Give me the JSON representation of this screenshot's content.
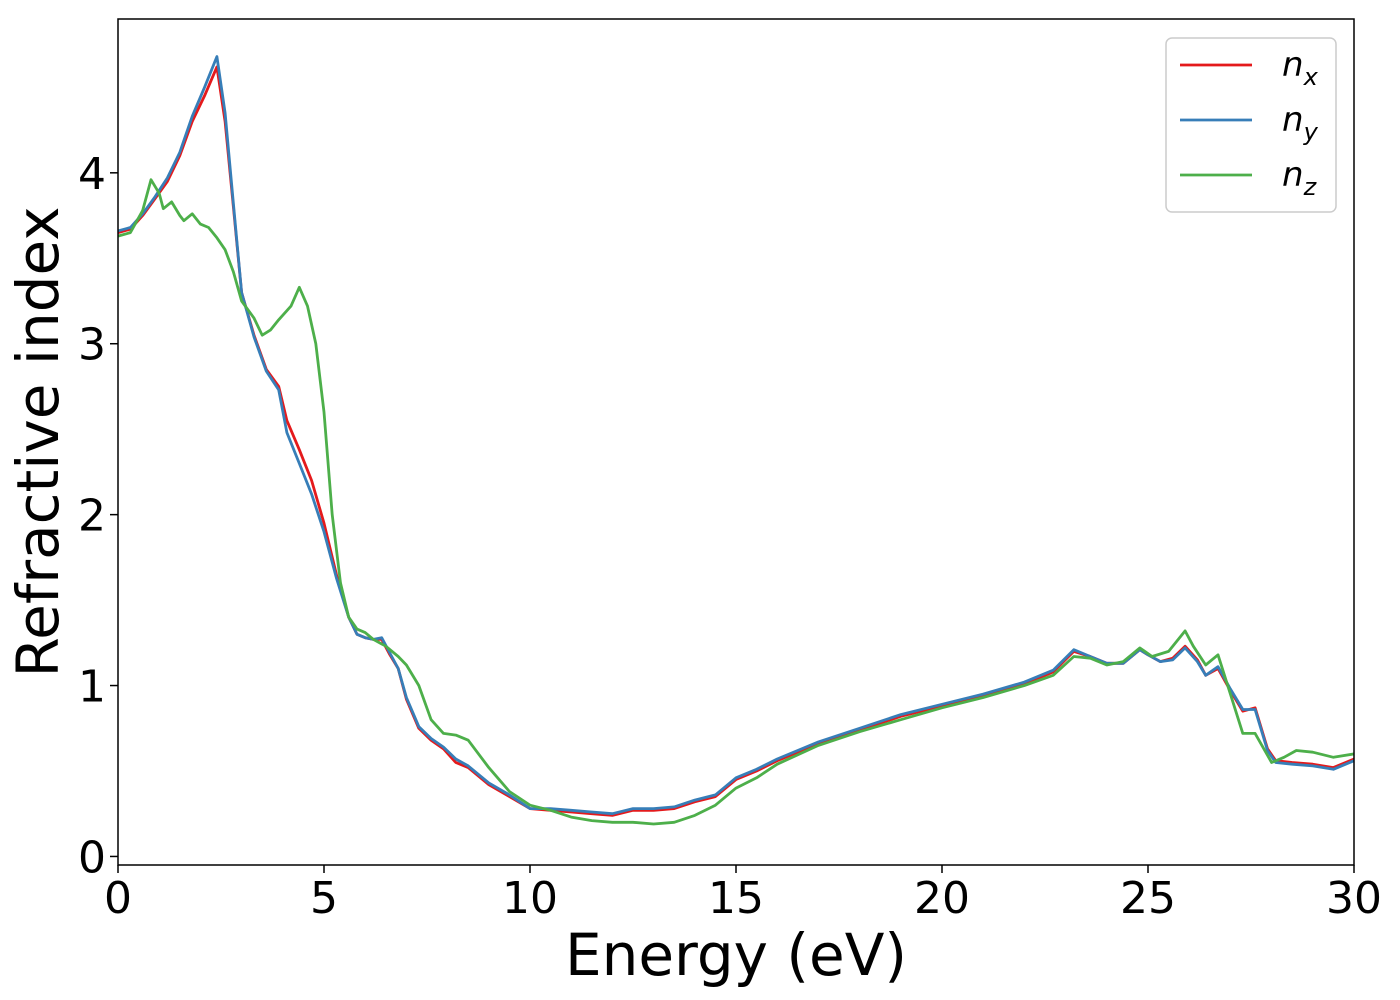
{
  "chart_data": {
    "type": "line",
    "title": "",
    "xlabel": "Energy (eV)",
    "ylabel": "Refractive index",
    "xlim": [
      0,
      30
    ],
    "ylim": [
      -0.05,
      4.9
    ],
    "xticks": [
      0,
      5,
      10,
      15,
      20,
      25,
      30
    ],
    "yticks": [
      0,
      1,
      2,
      3,
      4
    ],
    "grid": false,
    "legend_position": "top-right",
    "series": [
      {
        "name": "n_x",
        "legend_base": "n",
        "legend_sub": "x",
        "color": "#e41a1c",
        "points": [
          [
            0,
            3.65
          ],
          [
            0.3,
            3.67
          ],
          [
            0.6,
            3.75
          ],
          [
            0.9,
            3.85
          ],
          [
            1.2,
            3.95
          ],
          [
            1.5,
            4.1
          ],
          [
            1.8,
            4.3
          ],
          [
            2.1,
            4.45
          ],
          [
            2.4,
            4.62
          ],
          [
            2.6,
            4.3
          ],
          [
            2.8,
            3.8
          ],
          [
            3.0,
            3.3
          ],
          [
            3.3,
            3.05
          ],
          [
            3.6,
            2.85
          ],
          [
            3.9,
            2.75
          ],
          [
            4.1,
            2.55
          ],
          [
            4.4,
            2.38
          ],
          [
            4.7,
            2.2
          ],
          [
            5.0,
            1.95
          ],
          [
            5.3,
            1.65
          ],
          [
            5.6,
            1.4
          ],
          [
            5.8,
            1.3
          ],
          [
            6.0,
            1.28
          ],
          [
            6.2,
            1.27
          ],
          [
            6.4,
            1.27
          ],
          [
            6.6,
            1.18
          ],
          [
            6.8,
            1.1
          ],
          [
            7.0,
            0.92
          ],
          [
            7.3,
            0.75
          ],
          [
            7.6,
            0.68
          ],
          [
            7.9,
            0.63
          ],
          [
            8.2,
            0.55
          ],
          [
            8.5,
            0.52
          ],
          [
            9.0,
            0.42
          ],
          [
            9.5,
            0.35
          ],
          [
            10.0,
            0.28
          ],
          [
            10.5,
            0.27
          ],
          [
            11.0,
            0.26
          ],
          [
            11.5,
            0.25
          ],
          [
            12.0,
            0.24
          ],
          [
            12.5,
            0.27
          ],
          [
            13.0,
            0.27
          ],
          [
            13.5,
            0.28
          ],
          [
            14.0,
            0.32
          ],
          [
            14.5,
            0.35
          ],
          [
            15.0,
            0.45
          ],
          [
            15.5,
            0.5
          ],
          [
            16.0,
            0.56
          ],
          [
            17.0,
            0.66
          ],
          [
            18.0,
            0.74
          ],
          [
            19.0,
            0.82
          ],
          [
            20.0,
            0.88
          ],
          [
            21.0,
            0.94
          ],
          [
            22.0,
            1.01
          ],
          [
            22.7,
            1.08
          ],
          [
            23.2,
            1.2
          ],
          [
            23.6,
            1.17
          ],
          [
            24.0,
            1.13
          ],
          [
            24.4,
            1.13
          ],
          [
            24.8,
            1.21
          ],
          [
            25.0,
            1.18
          ],
          [
            25.3,
            1.14
          ],
          [
            25.6,
            1.16
          ],
          [
            25.9,
            1.23
          ],
          [
            26.2,
            1.15
          ],
          [
            26.4,
            1.06
          ],
          [
            26.7,
            1.1
          ],
          [
            27.0,
            0.97
          ],
          [
            27.3,
            0.85
          ],
          [
            27.6,
            0.87
          ],
          [
            27.9,
            0.63
          ],
          [
            28.1,
            0.56
          ],
          [
            28.5,
            0.55
          ],
          [
            29.0,
            0.54
          ],
          [
            29.5,
            0.52
          ],
          [
            30.0,
            0.57
          ]
        ]
      },
      {
        "name": "n_y",
        "legend_base": "n",
        "legend_sub": "y",
        "color": "#377eb8",
        "points": [
          [
            0,
            3.66
          ],
          [
            0.3,
            3.68
          ],
          [
            0.6,
            3.76
          ],
          [
            0.9,
            3.86
          ],
          [
            1.2,
            3.97
          ],
          [
            1.5,
            4.12
          ],
          [
            1.8,
            4.33
          ],
          [
            2.1,
            4.5
          ],
          [
            2.4,
            4.68
          ],
          [
            2.6,
            4.35
          ],
          [
            2.8,
            3.82
          ],
          [
            3.0,
            3.3
          ],
          [
            3.3,
            3.04
          ],
          [
            3.6,
            2.84
          ],
          [
            3.9,
            2.73
          ],
          [
            4.1,
            2.48
          ],
          [
            4.4,
            2.3
          ],
          [
            4.7,
            2.12
          ],
          [
            5.0,
            1.9
          ],
          [
            5.3,
            1.63
          ],
          [
            5.6,
            1.4
          ],
          [
            5.8,
            1.3
          ],
          [
            6.0,
            1.28
          ],
          [
            6.2,
            1.27
          ],
          [
            6.4,
            1.28
          ],
          [
            6.6,
            1.19
          ],
          [
            6.8,
            1.1
          ],
          [
            7.0,
            0.93
          ],
          [
            7.3,
            0.76
          ],
          [
            7.6,
            0.69
          ],
          [
            7.9,
            0.64
          ],
          [
            8.2,
            0.57
          ],
          [
            8.5,
            0.53
          ],
          [
            9.0,
            0.43
          ],
          [
            9.5,
            0.36
          ],
          [
            10.0,
            0.28
          ],
          [
            10.5,
            0.28
          ],
          [
            11.0,
            0.27
          ],
          [
            11.5,
            0.26
          ],
          [
            12.0,
            0.25
          ],
          [
            12.5,
            0.28
          ],
          [
            13.0,
            0.28
          ],
          [
            13.5,
            0.29
          ],
          [
            14.0,
            0.33
          ],
          [
            14.5,
            0.36
          ],
          [
            15.0,
            0.46
          ],
          [
            15.5,
            0.51
          ],
          [
            16.0,
            0.57
          ],
          [
            17.0,
            0.67
          ],
          [
            18.0,
            0.75
          ],
          [
            19.0,
            0.83
          ],
          [
            20.0,
            0.89
          ],
          [
            21.0,
            0.95
          ],
          [
            22.0,
            1.02
          ],
          [
            22.7,
            1.09
          ],
          [
            23.2,
            1.21
          ],
          [
            23.6,
            1.17
          ],
          [
            24.0,
            1.13
          ],
          [
            24.4,
            1.13
          ],
          [
            24.8,
            1.21
          ],
          [
            25.0,
            1.18
          ],
          [
            25.3,
            1.14
          ],
          [
            25.6,
            1.15
          ],
          [
            25.9,
            1.22
          ],
          [
            26.2,
            1.14
          ],
          [
            26.4,
            1.06
          ],
          [
            26.7,
            1.11
          ],
          [
            27.0,
            0.98
          ],
          [
            27.3,
            0.86
          ],
          [
            27.6,
            0.86
          ],
          [
            27.9,
            0.62
          ],
          [
            28.1,
            0.55
          ],
          [
            28.5,
            0.54
          ],
          [
            29.0,
            0.53
          ],
          [
            29.5,
            0.51
          ],
          [
            30.0,
            0.56
          ]
        ]
      },
      {
        "name": "n_z",
        "legend_base": "n",
        "legend_sub": "z",
        "color": "#4daf4a",
        "points": [
          [
            0,
            3.63
          ],
          [
            0.3,
            3.65
          ],
          [
            0.6,
            3.78
          ],
          [
            0.8,
            3.96
          ],
          [
            1.0,
            3.88
          ],
          [
            1.1,
            3.79
          ],
          [
            1.3,
            3.83
          ],
          [
            1.5,
            3.75
          ],
          [
            1.6,
            3.72
          ],
          [
            1.8,
            3.76
          ],
          [
            2.0,
            3.7
          ],
          [
            2.2,
            3.68
          ],
          [
            2.4,
            3.62
          ],
          [
            2.6,
            3.55
          ],
          [
            2.8,
            3.42
          ],
          [
            3.0,
            3.25
          ],
          [
            3.3,
            3.15
          ],
          [
            3.5,
            3.05
          ],
          [
            3.7,
            3.08
          ],
          [
            3.9,
            3.14
          ],
          [
            4.2,
            3.22
          ],
          [
            4.4,
            3.33
          ],
          [
            4.6,
            3.22
          ],
          [
            4.8,
            3.0
          ],
          [
            5.0,
            2.6
          ],
          [
            5.2,
            2.0
          ],
          [
            5.4,
            1.6
          ],
          [
            5.6,
            1.4
          ],
          [
            5.8,
            1.33
          ],
          [
            6.0,
            1.31
          ],
          [
            6.2,
            1.27
          ],
          [
            6.5,
            1.23
          ],
          [
            6.8,
            1.17
          ],
          [
            7.0,
            1.12
          ],
          [
            7.3,
            1.0
          ],
          [
            7.6,
            0.8
          ],
          [
            7.9,
            0.72
          ],
          [
            8.2,
            0.71
          ],
          [
            8.5,
            0.68
          ],
          [
            9.0,
            0.52
          ],
          [
            9.5,
            0.38
          ],
          [
            10.0,
            0.3
          ],
          [
            10.5,
            0.27
          ],
          [
            11.0,
            0.23
          ],
          [
            11.5,
            0.21
          ],
          [
            12.0,
            0.2
          ],
          [
            12.5,
            0.2
          ],
          [
            13.0,
            0.19
          ],
          [
            13.5,
            0.2
          ],
          [
            14.0,
            0.24
          ],
          [
            14.5,
            0.3
          ],
          [
            15.0,
            0.4
          ],
          [
            15.5,
            0.46
          ],
          [
            16.0,
            0.54
          ],
          [
            17.0,
            0.65
          ],
          [
            18.0,
            0.73
          ],
          [
            19.0,
            0.8
          ],
          [
            20.0,
            0.87
          ],
          [
            21.0,
            0.93
          ],
          [
            22.0,
            1.0
          ],
          [
            22.7,
            1.06
          ],
          [
            23.2,
            1.17
          ],
          [
            23.6,
            1.16
          ],
          [
            24.0,
            1.12
          ],
          [
            24.4,
            1.14
          ],
          [
            24.8,
            1.22
          ],
          [
            25.1,
            1.17
          ],
          [
            25.5,
            1.2
          ],
          [
            25.9,
            1.32
          ],
          [
            26.1,
            1.23
          ],
          [
            26.4,
            1.12
          ],
          [
            26.7,
            1.18
          ],
          [
            27.0,
            0.95
          ],
          [
            27.3,
            0.72
          ],
          [
            27.6,
            0.72
          ],
          [
            28.0,
            0.55
          ],
          [
            28.3,
            0.58
          ],
          [
            28.6,
            0.62
          ],
          [
            29.0,
            0.61
          ],
          [
            29.5,
            0.58
          ],
          [
            30.0,
            0.6
          ]
        ]
      }
    ]
  }
}
